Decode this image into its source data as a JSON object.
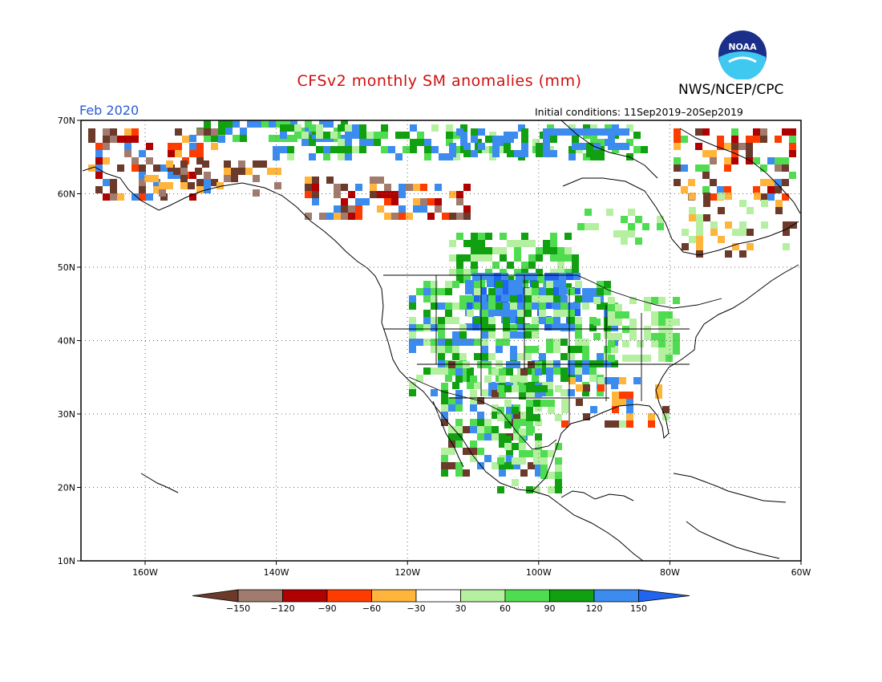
{
  "title": "CFSv2 monthly SM anomalies (mm)",
  "organization": "NWS/NCEP/CPC",
  "logo_text": "NOAA",
  "forecast_month": "Feb 2020",
  "initial_conditions": "Initial conditions: 11Sep2019–20Sep2019",
  "lat_labels": [
    "70N",
    "60N",
    "50N",
    "40N",
    "30N",
    "20N",
    "10N"
  ],
  "lon_labels": [
    "160W",
    "140W",
    "120W",
    "100W",
    "80W",
    "60W"
  ],
  "legend": {
    "labels": [
      "−150",
      "−120",
      "−90",
      "−60",
      "−30",
      "30",
      "60",
      "90",
      "120",
      "150"
    ],
    "colors": [
      "#6b3a2a",
      "#a07b6e",
      "#b00000",
      "#ff3c00",
      "#ffb43c",
      "#ffffff",
      "#b4f0a0",
      "#50dc50",
      "#10a010",
      "#3c8cf0",
      "#2064f0"
    ]
  },
  "colors": {
    "title": "#d01010",
    "month": "#2a5bd7"
  }
}
